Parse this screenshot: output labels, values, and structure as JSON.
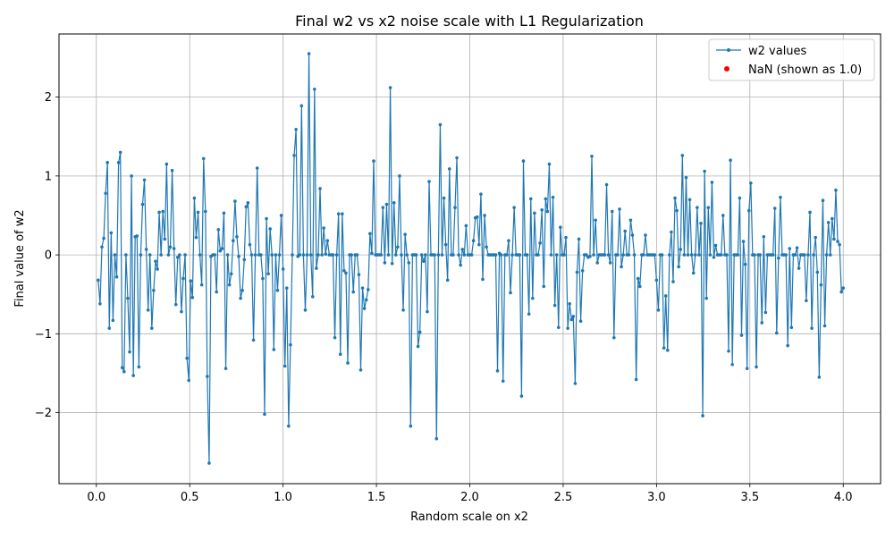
{
  "chart_data": {
    "type": "line",
    "title": "Final w2 vs x2 noise scale with L1 Regularization",
    "xlabel": "Random scale on x2",
    "ylabel": "Final value of w2",
    "xlim": [
      -0.2,
      4.2
    ],
    "ylim": [
      -2.9,
      2.8
    ],
    "xticks": [
      0.0,
      0.5,
      1.0,
      1.5,
      2.0,
      2.5,
      3.0,
      3.5,
      4.0
    ],
    "xtick_labels": [
      "0.0",
      "0.5",
      "1.0",
      "1.5",
      "2.0",
      "2.5",
      "3.0",
      "3.5",
      "4.0"
    ],
    "yticks": [
      -2,
      -1,
      0,
      1,
      2
    ],
    "ytick_labels": [
      "−2",
      "−1",
      "0",
      "1",
      "2"
    ],
    "grid": true,
    "legend_position": "top-right",
    "series": [
      {
        "name": "w2 values",
        "color": "#1f77b4",
        "x_start": 0.01,
        "x_end": 4.0,
        "values": [
          -0.32,
          -0.62,
          0.1,
          0.21,
          0.78,
          1.17,
          -0.93,
          0.28,
          -0.83,
          0.0,
          -0.28,
          1.17,
          1.3,
          -1.43,
          -1.48,
          0.0,
          -0.55,
          -1.23,
          1.0,
          -1.53,
          0.23,
          0.24,
          -1.42,
          0.0,
          0.64,
          0.95,
          0.07,
          -0.7,
          0.0,
          -0.93,
          -0.45,
          -0.08,
          -0.18,
          0.54,
          0.0,
          0.55,
          0.2,
          1.15,
          0.0,
          0.1,
          1.07,
          0.08,
          -0.63,
          -0.03,
          0.0,
          -0.72,
          -0.3,
          0.0,
          -1.31,
          -1.59,
          -0.33,
          -0.54,
          0.72,
          0.22,
          0.54,
          0.0,
          -0.38,
          1.22,
          0.55,
          -1.54,
          -2.64,
          -0.02,
          0.0,
          0.0,
          -0.47,
          0.32,
          0.05,
          0.08,
          0.53,
          -1.44,
          0.0,
          -0.38,
          -0.24,
          0.18,
          0.68,
          0.23,
          -0.02,
          -0.55,
          -0.45,
          -0.06,
          0.61,
          0.66,
          0.13,
          0.0,
          -1.08,
          0.0,
          1.1,
          0.0,
          0.0,
          -0.3,
          -2.02,
          0.46,
          -0.24,
          0.33,
          0.0,
          -1.2,
          0.0,
          -0.45,
          0.0,
          0.5,
          -0.18,
          -1.41,
          -0.42,
          -2.17,
          -1.14,
          0.0,
          1.26,
          1.59,
          -0.02,
          0.0,
          1.89,
          0.0,
          -0.7,
          0.0,
          2.55,
          0.0,
          -0.53,
          2.1,
          -0.17,
          0.0,
          0.84,
          0.0,
          0.34,
          0.01,
          0.18,
          0.0,
          0.0,
          0.0,
          -1.05,
          0.0,
          0.52,
          -1.26,
          0.52,
          -0.2,
          -0.23,
          -1.37,
          0.0,
          0.0,
          -0.47,
          0.0,
          0.0,
          -0.25,
          -1.46,
          -0.42,
          -0.68,
          -0.57,
          -0.44,
          0.27,
          0.02,
          1.19,
          0.0,
          0.0,
          0.0,
          0.0,
          0.6,
          -0.1,
          0.64,
          0.0,
          2.12,
          -0.11,
          0.66,
          0.0,
          0.1,
          1.0,
          0.0,
          -0.7,
          0.26,
          0.0,
          -0.1,
          -2.17,
          0.0,
          0.0,
          0.0,
          -1.16,
          -0.98,
          0.0,
          -0.08,
          0.0,
          -0.72,
          0.93,
          0.0,
          0.0,
          0.0,
          -2.33,
          0.0,
          1.65,
          0.0,
          0.72,
          0.13,
          -0.32,
          1.09,
          0.0,
          0.0,
          0.6,
          1.23,
          0.0,
          -0.13,
          0.07,
          0.0,
          0.37,
          0.0,
          0.0,
          0.0,
          0.18,
          0.47,
          0.48,
          0.13,
          0.77,
          -0.31,
          0.5,
          0.1,
          0.0,
          0.0,
          0.0,
          0.0,
          0.0,
          -1.47,
          0.02,
          0.0,
          -1.6,
          0.0,
          0.0,
          0.18,
          -0.48,
          0.0,
          0.6,
          0.0,
          0.0,
          0.0,
          -1.79,
          1.19,
          0.0,
          0.0,
          -0.75,
          0.71,
          -0.55,
          0.53,
          0.0,
          0.0,
          0.15,
          0.57,
          -0.4,
          0.71,
          0.55,
          1.15,
          0.0,
          0.73,
          -0.64,
          0.0,
          -0.92,
          0.35,
          0.0,
          0.0,
          0.22,
          -0.93,
          -0.62,
          -0.82,
          -0.78,
          -1.63,
          -0.22,
          0.2,
          -0.84,
          -0.2,
          0.0,
          0.0,
          -0.03,
          -0.02,
          1.25,
          0.0,
          0.44,
          -0.1,
          0.0,
          0.0,
          0.0,
          0.0,
          0.89,
          0.0,
          -0.1,
          0.55,
          -1.05,
          0.0,
          0.0,
          0.58,
          -0.15,
          0.0,
          0.3,
          0.0,
          0.0,
          0.44,
          0.25,
          0.0,
          -1.58,
          -0.3,
          -0.4,
          0.0,
          0.0,
          0.25,
          0.0,
          0.0,
          0.0,
          0.0,
          0.0,
          -0.32,
          -0.7,
          0.0,
          0.0,
          -1.18,
          -0.52,
          -1.21,
          0.0,
          0.29,
          -0.34,
          0.72,
          0.56,
          -0.15,
          0.07,
          1.26,
          0.0,
          0.98,
          0.0,
          0.7,
          0.0,
          -0.23,
          0.0,
          0.6,
          0.0,
          0.4,
          -2.04,
          1.06,
          -0.55,
          0.6,
          0.0,
          0.92,
          -0.03,
          0.12,
          0.0,
          0.0,
          0.0,
          0.5,
          0.0,
          0.0,
          -1.22,
          1.2,
          -1.39,
          0.0,
          0.0,
          0.0,
          0.72,
          -1.02,
          0.17,
          -0.12,
          -1.44,
          0.56,
          0.91,
          0.0,
          0.0,
          -1.42,
          0.0,
          0.0,
          -0.86,
          0.23,
          -0.73,
          0.0,
          0.0,
          0.0,
          0.0,
          0.59,
          -0.99,
          -0.04,
          0.73,
          0.0,
          0.0,
          0.0,
          -1.15,
          0.08,
          -0.92,
          0.0,
          0.0,
          0.09,
          -0.17,
          0.0,
          0.0,
          0.0,
          -0.58,
          0.0,
          0.54,
          -0.93,
          0.0,
          0.22,
          -0.22,
          -1.55,
          -0.38,
          0.69,
          -0.9,
          0.0,
          0.41,
          0.0,
          0.46,
          0.2,
          0.82,
          0.17,
          0.13,
          -0.47,
          -0.42
        ]
      }
    ],
    "legend": [
      {
        "label": "w2 values",
        "color": "#1f77b4",
        "marker": "line-dot"
      },
      {
        "label": "NaN (shown as 1.0)",
        "color": "#ff0000",
        "marker": "dot"
      }
    ]
  }
}
